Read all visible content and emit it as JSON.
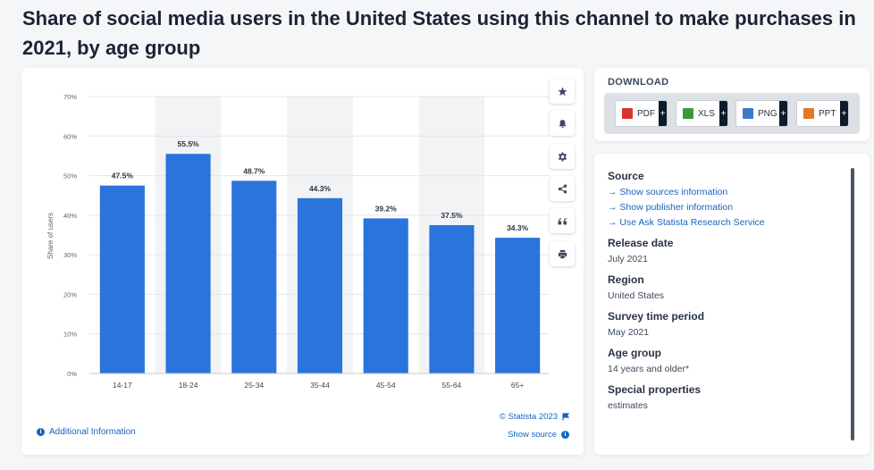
{
  "page": {
    "title": "Share of social media users in the United States using this channel to make purchases in 2021, by age group"
  },
  "chart_data": {
    "type": "bar",
    "categories": [
      "14-17",
      "18-24",
      "25-34",
      "35-44",
      "45-54",
      "55-64",
      "65+"
    ],
    "values": [
      47.5,
      55.5,
      48.7,
      44.3,
      39.2,
      37.5,
      34.3
    ],
    "value_labels": [
      "47.5%",
      "55.5%",
      "48.7%",
      "44.3%",
      "39.2%",
      "37.5%",
      "34.3%"
    ],
    "ylabel": "Share of users",
    "xlabel": "",
    "ylim": [
      0,
      70
    ],
    "yticks": [
      0,
      10,
      20,
      30,
      40,
      50,
      60,
      70
    ],
    "ytick_labels": [
      "0%",
      "10%",
      "20%",
      "30%",
      "40%",
      "50%",
      "60%",
      "70%"
    ],
    "grid": true,
    "bar_color": "#2a74dc",
    "band_color": "#f2f3f5"
  },
  "chart_footer": {
    "additional_info": "Additional Information",
    "copyright": "© Statista 2023",
    "show_source": "Show source"
  },
  "toolbar": {
    "icons": [
      "star-icon",
      "bell-icon",
      "gear-icon",
      "share-icon",
      "quote-icon",
      "print-icon"
    ]
  },
  "download": {
    "heading": "DOWNLOAD",
    "buttons": [
      {
        "label": "PDF",
        "icon": "pdf-file-icon",
        "color": "#d9342b",
        "plus": "+"
      },
      {
        "label": "XLS",
        "icon": "xls-file-icon",
        "color": "#3a9a3a",
        "plus": "+"
      },
      {
        "label": "PNG",
        "icon": "png-file-icon",
        "color": "#3a7ac8",
        "plus": "+"
      },
      {
        "label": "PPT",
        "icon": "ppt-file-icon",
        "color": "#e07a2a",
        "plus": "+"
      }
    ]
  },
  "details": {
    "source_label": "Source",
    "source_links": [
      "→ Show sources information",
      "→ Show publisher information",
      "→ Use Ask Statista Research Service"
    ],
    "release_label": "Release date",
    "release_value": "July 2021",
    "region_label": "Region",
    "region_value": "United States",
    "survey_label": "Survey time period",
    "survey_value": "May 2021",
    "age_label": "Age group",
    "age_value": "14 years and older*",
    "special_label": "Special properties",
    "special_value": "estimates"
  }
}
